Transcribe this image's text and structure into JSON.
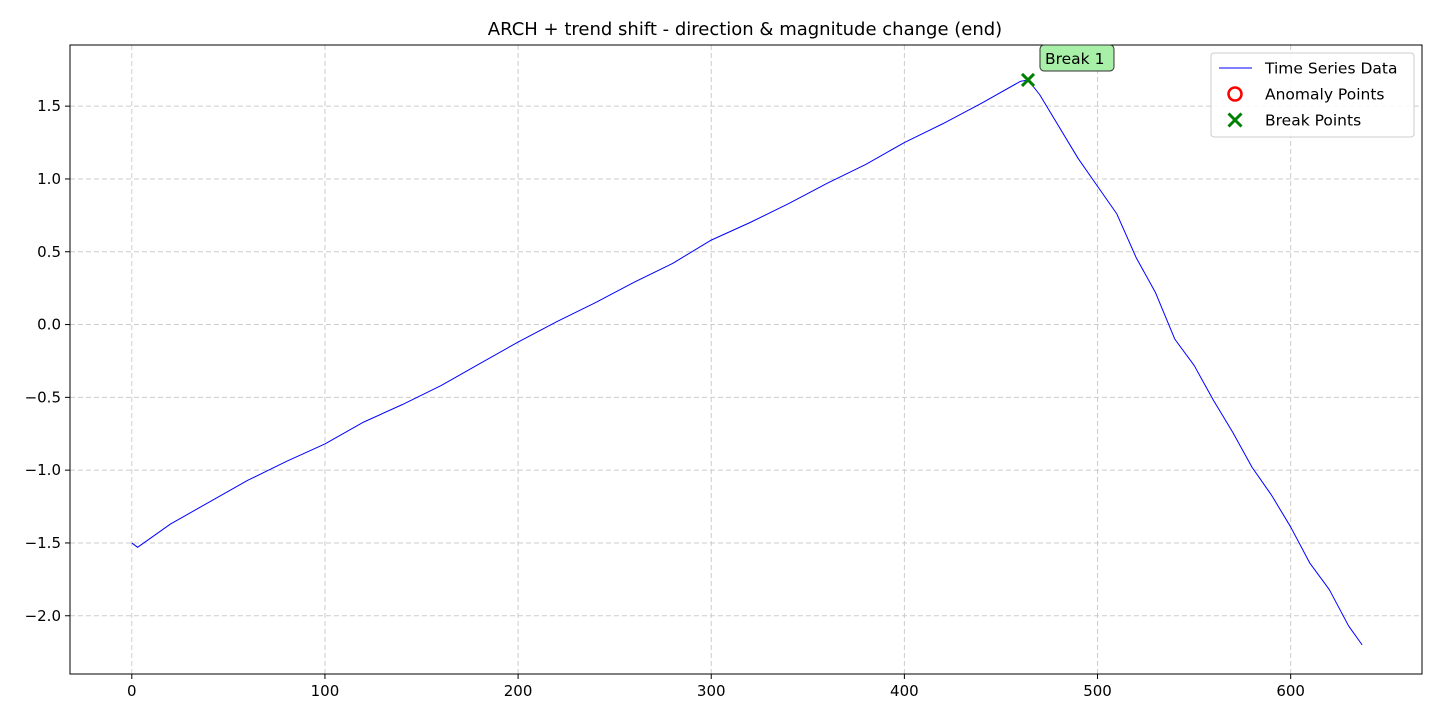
{
  "chart_data": {
    "type": "line",
    "title": "ARCH + trend shift - direction & magnitude change (end)",
    "xlabel": "",
    "ylabel": "",
    "xlim": [
      -32,
      668
    ],
    "ylim": [
      -2.4,
      1.92
    ],
    "x_ticks": [
      0,
      100,
      200,
      300,
      400,
      500,
      600
    ],
    "x_tick_labels": [
      "0",
      "100",
      "200",
      "300",
      "400",
      "500",
      "600"
    ],
    "y_ticks": [
      -2.0,
      -1.5,
      -1.0,
      -0.5,
      0.0,
      0.5,
      1.0,
      1.5
    ],
    "y_tick_labels": [
      "−2.0",
      "−1.5",
      "−1.0",
      "−0.5",
      "0.0",
      "0.5",
      "1.0",
      "1.5"
    ],
    "grid": true,
    "legend_position": "top-right",
    "legend": [
      {
        "label": "Time Series Data",
        "marker": "line",
        "color": "#0000ff"
      },
      {
        "label": "Anomaly Points",
        "marker": "circle",
        "color": "#ff0000"
      },
      {
        "label": "Break Points",
        "marker": "x",
        "color": "#008000"
      }
    ],
    "series": [
      {
        "name": "Time Series Data",
        "color": "#0000ff",
        "x": [
          0,
          3,
          20,
          40,
          60,
          80,
          100,
          120,
          140,
          160,
          180,
          200,
          220,
          240,
          260,
          280,
          300,
          320,
          340,
          360,
          380,
          400,
          420,
          440,
          460,
          464,
          470,
          480,
          490,
          500,
          510,
          520,
          530,
          540,
          550,
          560,
          570,
          580,
          590,
          600,
          610,
          620,
          630,
          637
        ],
        "y": [
          -1.5,
          -1.53,
          -1.37,
          -1.22,
          -1.07,
          -0.94,
          -0.82,
          -0.67,
          -0.55,
          -0.42,
          -0.27,
          -0.12,
          0.02,
          0.15,
          0.29,
          0.42,
          0.58,
          0.7,
          0.83,
          0.97,
          1.1,
          1.25,
          1.38,
          1.52,
          1.67,
          1.68,
          1.58,
          1.36,
          1.14,
          0.95,
          0.76,
          0.46,
          0.22,
          -0.1,
          -0.28,
          -0.52,
          -0.74,
          -0.98,
          -1.17,
          -1.39,
          -1.64,
          -1.82,
          -2.07,
          -2.2
        ]
      }
    ],
    "anomaly_points": [],
    "break_points": [
      {
        "x": 464,
        "y": 1.68,
        "label": "Break 1"
      }
    ]
  }
}
